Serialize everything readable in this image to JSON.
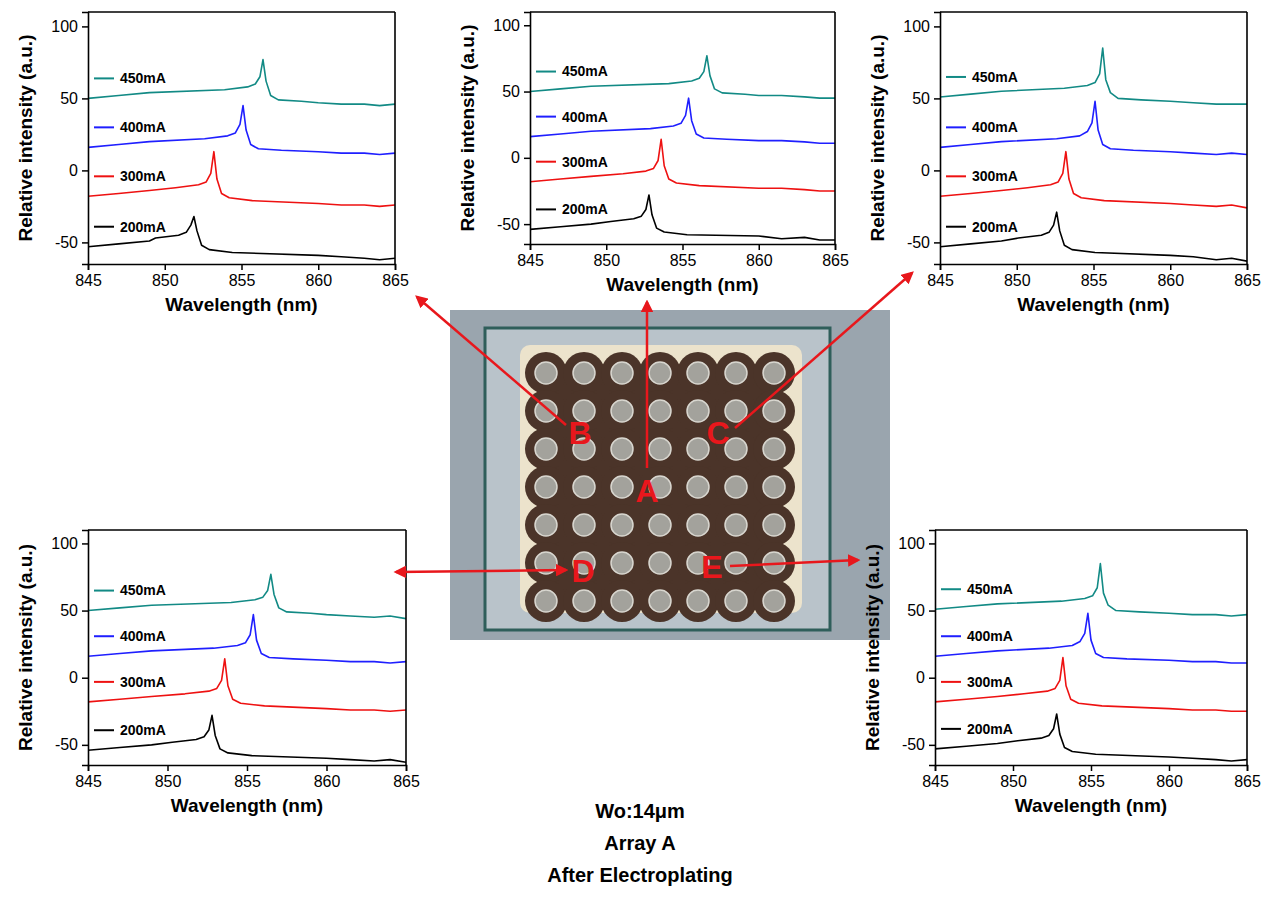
{
  "chart_data": [
    {
      "type": "line",
      "x_label": "Wavelength (nm)",
      "y_label": "Relative intensity (a.u.)",
      "xlim": [
        845,
        865
      ],
      "ylim": [
        -65,
        110
      ],
      "xticks": [
        845,
        850,
        855,
        860,
        865
      ],
      "yticks": [
        -50,
        0,
        50,
        100
      ],
      "legend": "left",
      "series": [
        {
          "name": "200mA",
          "color": "#000000",
          "x": [
            845,
            847,
            849,
            849.4,
            850.9,
            851.4,
            851.7,
            851.9,
            852.1,
            852.4,
            852.9,
            854.4,
            860,
            861.5,
            863,
            864,
            865
          ],
          "values": [
            -53,
            -51,
            -49,
            -47,
            -45,
            -43,
            -38,
            -32,
            -42,
            -52,
            -55,
            -57,
            -59,
            -60,
            -61,
            -62,
            -61
          ]
        },
        {
          "name": "300mA",
          "color": "#ee1111",
          "x": [
            845,
            847,
            849,
            850.7,
            852.2,
            852.7,
            853,
            853.2,
            853.4,
            853.7,
            854.2,
            855.7,
            860,
            861.5,
            863,
            864,
            865
          ],
          "values": [
            -18,
            -16,
            -14,
            -12,
            -10,
            -8,
            -2,
            13,
            -6,
            -16,
            -19,
            -21,
            -23,
            -24,
            -24,
            -25,
            -24
          ]
        },
        {
          "name": "400mA",
          "color": "#1f1fff",
          "x": [
            845,
            847,
            849,
            852.6,
            854.1,
            854.6,
            854.9,
            855.1,
            855.3,
            855.6,
            856.1,
            857.6,
            860,
            861.5,
            863,
            864,
            865
          ],
          "values": [
            16,
            18,
            20,
            22,
            24,
            26,
            32,
            45,
            28,
            18,
            15,
            14,
            13,
            12,
            12,
            11,
            12
          ]
        },
        {
          "name": "450mA",
          "color": "#128a85",
          "x": [
            845,
            847,
            849,
            853.9,
            855.4,
            855.9,
            856.2,
            856.4,
            856.6,
            856.9,
            857.4,
            858.9,
            860,
            861.5,
            863,
            864,
            865
          ],
          "values": [
            50,
            52,
            54,
            56,
            58,
            60,
            65,
            77,
            62,
            52,
            49,
            48,
            47,
            46,
            46,
            45,
            46
          ]
        }
      ]
    },
    {
      "type": "line",
      "x_label": "Wavelength (nm)",
      "y_label": "Relative intensity (a.u.)",
      "xlim": [
        845,
        865
      ],
      "ylim": [
        -65,
        110
      ],
      "xticks": [
        845,
        850,
        855,
        860,
        865
      ],
      "yticks": [
        -50,
        0,
        50,
        100
      ],
      "legend": "left",
      "series": [
        {
          "name": "200mA",
          "color": "#000000",
          "x": [
            845,
            847,
            849,
            850.3,
            851.8,
            852.3,
            852.6,
            852.8,
            853,
            853.3,
            853.8,
            855.3,
            860,
            861.5,
            863,
            864,
            865
          ],
          "values": [
            -54,
            -52,
            -50,
            -48,
            -46,
            -44,
            -39,
            -28,
            -43,
            -53,
            -56,
            -58,
            -59,
            -61,
            -60,
            -62,
            -62
          ]
        },
        {
          "name": "300mA",
          "color": "#ee1111",
          "x": [
            845,
            847,
            849,
            851.1,
            852.6,
            853.1,
            853.4,
            853.6,
            853.8,
            854.1,
            854.6,
            856.1,
            860,
            861.5,
            863,
            864,
            865
          ],
          "values": [
            -18,
            -16,
            -14,
            -12,
            -10,
            -8,
            -2,
            14,
            -6,
            -16,
            -19,
            -21,
            -23,
            -23,
            -24,
            -25,
            -25
          ]
        },
        {
          "name": "400mA",
          "color": "#1f1fff",
          "x": [
            845,
            847,
            849,
            852.9,
            854.4,
            854.9,
            855.2,
            855.4,
            855.6,
            855.9,
            856.4,
            857.9,
            860,
            861.5,
            863,
            864,
            865
          ],
          "values": [
            16,
            18,
            20,
            22,
            24,
            26,
            32,
            45,
            28,
            18,
            15,
            14,
            13,
            13,
            12,
            11,
            11
          ]
        },
        {
          "name": "450mA",
          "color": "#128a85",
          "x": [
            845,
            847,
            849,
            854.1,
            855.6,
            856.1,
            856.4,
            856.6,
            856.8,
            857.1,
            857.6,
            859.1,
            860,
            861.5,
            863,
            864,
            865
          ],
          "values": [
            50,
            52,
            54,
            56,
            58,
            60,
            65,
            77,
            62,
            52,
            49,
            48,
            47,
            47,
            46,
            45,
            45
          ]
        }
      ]
    },
    {
      "type": "line",
      "x_label": "Wavelength (nm)",
      "y_label": "Relative intensity (a.u.)",
      "xlim": [
        845,
        865
      ],
      "ylim": [
        -65,
        110
      ],
      "xticks": [
        845,
        850,
        855,
        860,
        865
      ],
      "yticks": [
        -50,
        0,
        50,
        100
      ],
      "legend": "left",
      "series": [
        {
          "name": "200mA",
          "color": "#000000",
          "x": [
            845,
            847,
            849,
            850.1,
            851.6,
            852.1,
            852.4,
            852.6,
            852.8,
            853.1,
            853.6,
            855.1,
            860,
            861.5,
            863,
            864,
            865
          ],
          "values": [
            -53,
            -51,
            -49,
            -47,
            -45,
            -43,
            -38,
            -29,
            -42,
            -52,
            -55,
            -57,
            -59,
            -60,
            -62,
            -61,
            -63
          ]
        },
        {
          "name": "300mA",
          "color": "#ee1111",
          "x": [
            845,
            847,
            849,
            850.7,
            852.2,
            852.7,
            853,
            853.2,
            853.4,
            853.7,
            854.2,
            855.7,
            860,
            861.5,
            863,
            864,
            865
          ],
          "values": [
            -18,
            -16,
            -14,
            -12,
            -10,
            -8,
            -2,
            13,
            -6,
            -16,
            -19,
            -21,
            -23,
            -24,
            -25,
            -24,
            -26
          ]
        },
        {
          "name": "400mA",
          "color": "#1f1fff",
          "x": [
            845,
            847,
            849,
            852.6,
            854.1,
            854.6,
            854.9,
            855.1,
            855.3,
            855.6,
            856.1,
            857.6,
            860,
            861.5,
            863,
            864,
            865
          ],
          "values": [
            16,
            18,
            20,
            22,
            24,
            27,
            33,
            48,
            28,
            18,
            15,
            14,
            13,
            12,
            11,
            12,
            11
          ]
        },
        {
          "name": "450mA",
          "color": "#128a85",
          "x": [
            845,
            847,
            849,
            853.1,
            854.6,
            855.1,
            855.4,
            855.6,
            855.8,
            856.1,
            856.6,
            858.1,
            860,
            861.5,
            863,
            864,
            865
          ],
          "values": [
            51,
            53,
            55,
            57,
            59,
            61,
            67,
            85,
            63,
            54,
            50,
            49,
            48,
            47,
            46,
            46,
            46
          ]
        }
      ]
    },
    {
      "type": "line",
      "x_label": "Wavelength (nm)",
      "y_label": "Relative intensity (a.u.)",
      "xlim": [
        845,
        865
      ],
      "ylim": [
        -65,
        110
      ],
      "xticks": [
        845,
        850,
        855,
        860,
        865
      ],
      "yticks": [
        -50,
        0,
        50,
        100
      ],
      "legend": "left",
      "series": [
        {
          "name": "200mA",
          "color": "#000000",
          "x": [
            845,
            847,
            849,
            850.3,
            851.8,
            852.3,
            852.6,
            852.8,
            853,
            853.3,
            853.8,
            855.3,
            860,
            861.5,
            863,
            864,
            865
          ],
          "values": [
            -54,
            -52,
            -50,
            -48,
            -46,
            -44,
            -39,
            -28,
            -43,
            -53,
            -56,
            -58,
            -60,
            -61,
            -62,
            -61,
            -63
          ]
        },
        {
          "name": "300mA",
          "color": "#ee1111",
          "x": [
            845,
            847,
            849,
            851.1,
            852.6,
            853.1,
            853.4,
            853.6,
            853.8,
            854.1,
            854.6,
            856.1,
            860,
            861.5,
            863,
            864,
            865
          ],
          "values": [
            -18,
            -16,
            -14,
            -12,
            -10,
            -8,
            -2,
            14,
            -6,
            -16,
            -19,
            -21,
            -23,
            -24,
            -24,
            -25,
            -24
          ]
        },
        {
          "name": "400mA",
          "color": "#1f1fff",
          "x": [
            845,
            847,
            849,
            852.9,
            854.4,
            854.9,
            855.2,
            855.4,
            855.6,
            855.9,
            856.4,
            857.9,
            860,
            861.5,
            863,
            864,
            865
          ],
          "values": [
            16,
            18,
            20,
            22,
            24,
            26,
            32,
            47,
            28,
            18,
            15,
            14,
            13,
            12,
            12,
            11,
            12
          ]
        },
        {
          "name": "450mA",
          "color": "#128a85",
          "x": [
            845,
            847,
            849,
            854,
            855.5,
            856,
            856.3,
            856.5,
            856.7,
            857,
            857.5,
            859,
            860,
            861.5,
            863,
            864,
            865
          ],
          "values": [
            50,
            52,
            54,
            56,
            58,
            60,
            65,
            77,
            62,
            52,
            49,
            48,
            47,
            46,
            45,
            46,
            44
          ]
        }
      ]
    },
    {
      "type": "line",
      "x_label": "Wavelength (nm)",
      "y_label": "Relative intensity (a.u.)",
      "xlim": [
        845,
        865
      ],
      "ylim": [
        -65,
        110
      ],
      "xticks": [
        845,
        850,
        855,
        860,
        865
      ],
      "yticks": [
        -50,
        0,
        50,
        100
      ],
      "legend": "left",
      "series": [
        {
          "name": "200mA",
          "color": "#000000",
          "x": [
            845,
            847,
            849,
            850.3,
            851.8,
            852.3,
            852.6,
            852.8,
            853,
            853.3,
            853.8,
            855.3,
            860,
            861.5,
            863,
            864,
            865
          ],
          "values": [
            -53,
            -51,
            -49,
            -47,
            -45,
            -43,
            -38,
            -27,
            -42,
            -52,
            -55,
            -57,
            -59,
            -60,
            -61,
            -62,
            -61
          ]
        },
        {
          "name": "300mA",
          "color": "#ee1111",
          "x": [
            845,
            847,
            849,
            850.7,
            852.2,
            852.7,
            853,
            853.2,
            853.4,
            853.7,
            854.2,
            855.7,
            860,
            861.5,
            863,
            864,
            865
          ],
          "values": [
            -18,
            -16,
            -14,
            -12,
            -10,
            -8,
            -2,
            15,
            -6,
            -16,
            -19,
            -21,
            -23,
            -24,
            -24,
            -25,
            -25
          ]
        },
        {
          "name": "400mA",
          "color": "#1f1fff",
          "x": [
            845,
            847,
            849,
            852.3,
            853.8,
            854.3,
            854.6,
            854.8,
            855,
            855.3,
            855.8,
            857.3,
            860,
            861.5,
            863,
            864,
            865
          ],
          "values": [
            16,
            18,
            20,
            22,
            24,
            27,
            33,
            48,
            28,
            18,
            15,
            14,
            13,
            12,
            12,
            11,
            11
          ]
        },
        {
          "name": "450mA",
          "color": "#128a85",
          "x": [
            845,
            847,
            849,
            853.1,
            854.6,
            855.1,
            855.4,
            855.6,
            855.8,
            856.1,
            856.6,
            858.1,
            860,
            861.5,
            863,
            864,
            865
          ],
          "values": [
            51,
            53,
            55,
            57,
            59,
            61,
            67,
            85,
            63,
            54,
            50,
            49,
            48,
            47,
            47,
            46,
            47
          ]
        }
      ]
    }
  ],
  "photo": {
    "labels": [
      "B",
      "A",
      "C",
      "D",
      "E"
    ]
  },
  "caption": [
    "Wo:14μm",
    "Array A",
    "After Electroplating"
  ]
}
